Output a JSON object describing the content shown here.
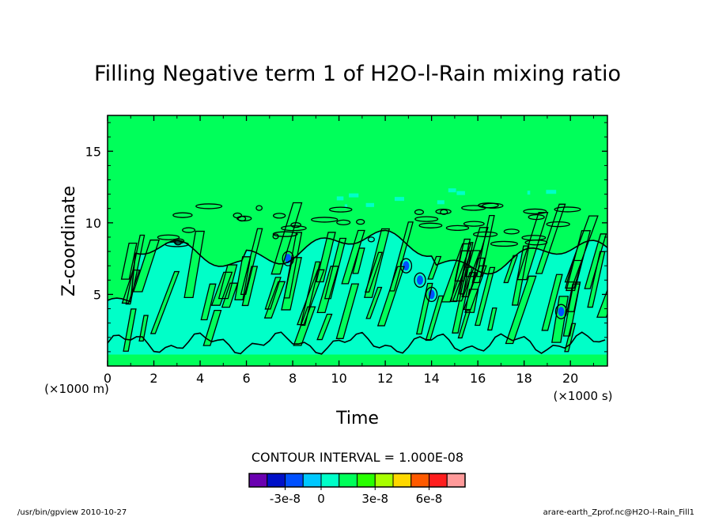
{
  "chart_data": {
    "type": "heatmap",
    "subtype": "filled contour",
    "title": "Filling Negative term 1 of H2O-l-Rain mixing ratio",
    "xlabel": "Time",
    "ylabel": "Z-coordinate",
    "x_unit_label": "(×1000 s)",
    "y_unit_label": "(×1000 m)",
    "xlim": [
      0,
      21.6
    ],
    "ylim": [
      0,
      17.5
    ],
    "x_ticks": [
      "0",
      "2",
      "4",
      "6",
      "8",
      "10",
      "12",
      "14",
      "16",
      "18",
      "20"
    ],
    "y_ticks": [
      "5",
      "10",
      "15"
    ],
    "contour_interval_text": "CONTOUR INTERVAL = 1.000E-08",
    "colorbar": {
      "colors": [
        "#6a00b0",
        "#0010c8",
        "#0050ff",
        "#00c8ff",
        "#00ffc8",
        "#00ff5a",
        "#28ff00",
        "#a8ff00",
        "#ffd800",
        "#ff5a00",
        "#ff1e1e",
        "#ff9a9a"
      ],
      "tick_labels": [
        "-3e-8",
        "0",
        "3e-8",
        "6e-8"
      ]
    },
    "background_level_color": "#00ff5a",
    "negative_region_color": "#00ffc8"
  },
  "footer": {
    "left": "/usr/bin/gpview  2010-10-27",
    "right": "arare-earth_Zprof.nc@H2O-l-Rain_Fill1"
  }
}
